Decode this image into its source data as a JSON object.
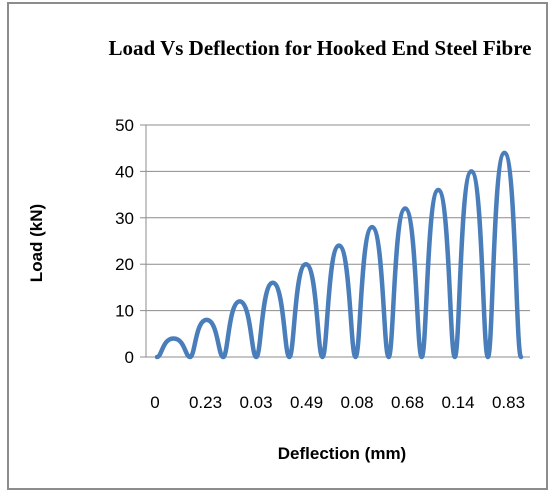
{
  "chart_data": {
    "type": "line",
    "title": "Load Vs Deflection for Hooked End Steel Fibre",
    "xlabel": "Deflection (mm)",
    "ylabel": "Load (kN)",
    "ylim": [
      0,
      50
    ],
    "y_ticks": [
      "0",
      "10",
      "20",
      "30",
      "40",
      "50"
    ],
    "x_tick_labels": [
      "0",
      "0.23",
      "0.03",
      "0.49",
      "0.08",
      "0.68",
      "0.14",
      "0.83"
    ],
    "grid": "horizontal",
    "legend": "none",
    "series": [
      {
        "color": "#4a7ebb",
        "peaks": [
          4,
          8,
          12,
          16,
          20,
          24,
          28,
          32,
          36,
          40,
          44
        ]
      }
    ]
  }
}
